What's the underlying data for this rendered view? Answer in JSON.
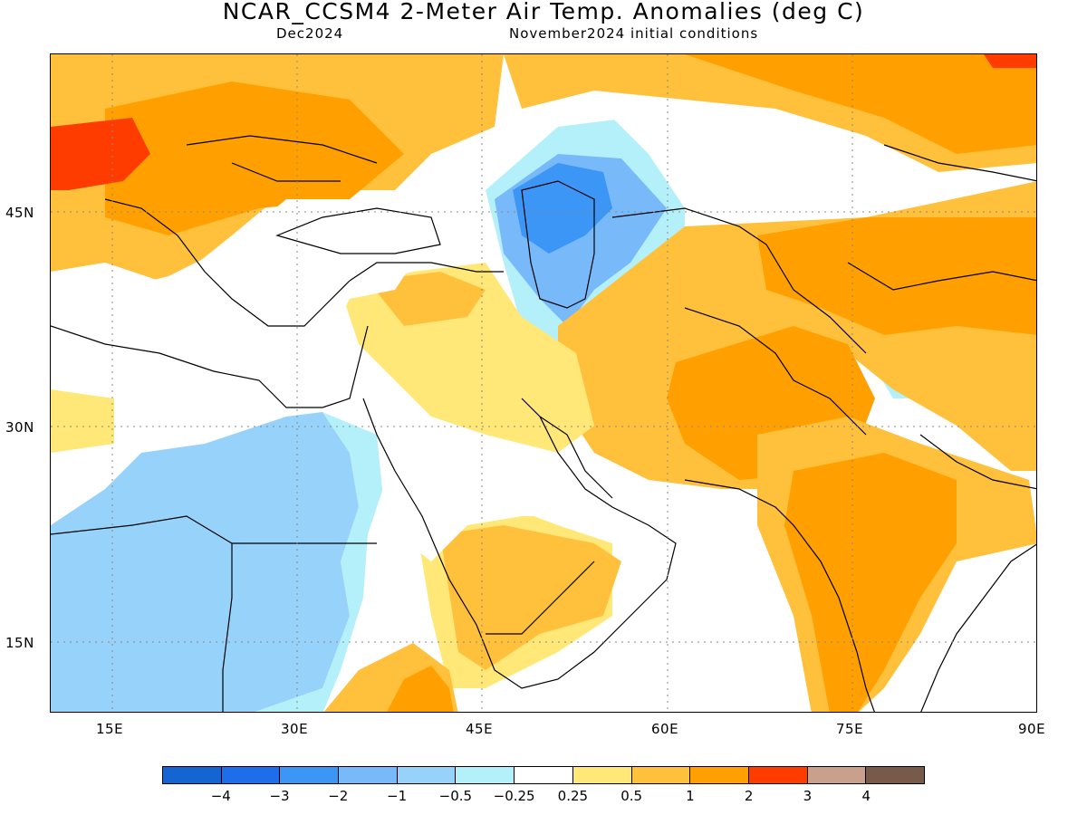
{
  "title": "NCAR_CCSM4 2-Meter Air Temp. Anomalies (deg C)",
  "subtitle_left": "Dec2024",
  "subtitle_right": "November2024 initial conditions",
  "map": {
    "lon_range": [
      10,
      90
    ],
    "lat_range": [
      10,
      56
    ],
    "y_labels": [
      "45N",
      "30N",
      "15N"
    ],
    "x_labels": [
      "15E",
      "30E",
      "45E",
      "60E",
      "75E",
      "90E"
    ]
  },
  "legend": {
    "colors": [
      "#1464d2",
      "#1e6eeb",
      "#3c96f5",
      "#78b9fa",
      "#96d2fa",
      "#b4f0fa",
      "#ffffff",
      "#ffe878",
      "#ffc03c",
      "#ffa000",
      "#ff3c00",
      "#c8a08c",
      "#785a4b"
    ],
    "labels": [
      "−4",
      "−3",
      "−2",
      "−1",
      "−0.5",
      "−0.25",
      "0.25",
      "0.5",
      "1",
      "2",
      "3",
      "4"
    ]
  }
}
